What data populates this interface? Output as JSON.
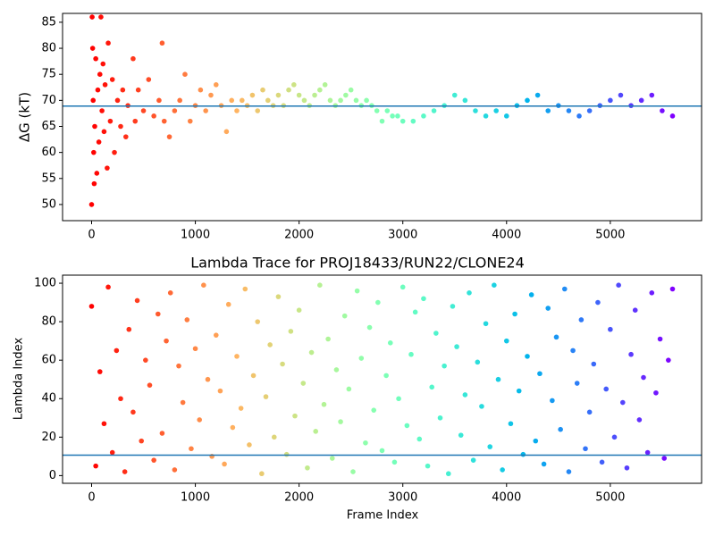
{
  "chart_data": [
    {
      "type": "scatter",
      "ylabel": "ΔG (kT)",
      "colormap": "rainbow_r",
      "xlim": [
        -280,
        5880
      ],
      "xticks": [
        0,
        1000,
        2000,
        3000,
        4000,
        5000
      ],
      "ylim": [
        46.9,
        86.7
      ],
      "yticks": [
        50,
        55,
        60,
        65,
        70,
        75,
        80,
        85
      ],
      "hline": 68.9,
      "hline_color": "#1f77b4",
      "x": [
        0,
        5,
        10,
        15,
        20,
        25,
        30,
        40,
        50,
        60,
        70,
        80,
        90,
        100,
        110,
        120,
        130,
        150,
        160,
        180,
        200,
        220,
        250,
        280,
        300,
        330,
        350,
        400,
        420,
        450,
        500,
        550,
        600,
        650,
        680,
        700,
        750,
        800,
        850,
        900,
        950,
        1000,
        1050,
        1100,
        1150,
        1200,
        1250,
        1300,
        1350,
        1400,
        1450,
        1500,
        1550,
        1600,
        1650,
        1700,
        1750,
        1800,
        1850,
        1900,
        1950,
        2000,
        2050,
        2100,
        2150,
        2200,
        2250,
        2300,
        2350,
        2400,
        2450,
        2500,
        2550,
        2600,
        2650,
        2700,
        2750,
        2800,
        2850,
        2900,
        2950,
        3000,
        3100,
        3200,
        3300,
        3400,
        3500,
        3600,
        3700,
        3800,
        3900,
        4000,
        4100,
        4200,
        4300,
        4400,
        4500,
        4600,
        4700,
        4800,
        4900,
        5000,
        5100,
        5200,
        5300,
        5400,
        5500,
        5600
      ],
      "y": [
        50,
        86,
        80,
        70,
        60,
        54,
        65,
        78,
        56,
        72,
        62,
        75,
        86,
        68,
        77,
        64,
        73,
        57,
        81,
        66,
        74,
        60,
        70,
        65,
        72,
        63,
        69,
        78,
        66,
        72,
        68,
        74,
        67,
        70,
        81,
        66,
        63,
        68,
        70,
        75,
        66,
        69,
        72,
        68,
        71,
        73,
        69,
        64,
        70,
        68,
        70,
        69,
        71,
        68,
        72,
        70,
        69,
        71,
        69,
        72,
        73,
        71,
        70,
        69,
        71,
        72,
        73,
        70,
        69,
        70,
        71,
        72,
        70,
        69,
        70,
        69,
        68,
        66,
        68,
        67,
        67,
        66,
        66,
        67,
        68,
        69,
        71,
        70,
        68,
        67,
        68,
        67,
        69,
        70,
        71,
        68,
        69,
        68,
        67,
        68,
        69,
        70,
        71,
        69,
        70,
        71,
        68,
        67
      ]
    },
    {
      "type": "scatter",
      "title": "Lambda Trace for PROJ18433/RUN22/CLONE24",
      "xlabel": "Frame Index",
      "ylabel": "Lambda Index",
      "colormap": "rainbow_r",
      "xlim": [
        -280,
        5880
      ],
      "xticks": [
        0,
        1000,
        2000,
        3000,
        4000,
        5000
      ],
      "ylim": [
        -4,
        104.2
      ],
      "yticks": [
        0,
        20,
        40,
        60,
        80,
        100
      ],
      "hline": 10.6,
      "hline_color": "#1f77b4",
      "x": [
        0,
        40,
        80,
        120,
        160,
        200,
        240,
        280,
        320,
        360,
        400,
        440,
        480,
        520,
        560,
        600,
        640,
        680,
        720,
        760,
        800,
        840,
        880,
        920,
        960,
        1000,
        1040,
        1080,
        1120,
        1160,
        1200,
        1240,
        1280,
        1320,
        1360,
        1400,
        1440,
        1480,
        1520,
        1560,
        1600,
        1640,
        1680,
        1720,
        1760,
        1800,
        1840,
        1880,
        1920,
        1960,
        2000,
        2040,
        2080,
        2120,
        2160,
        2200,
        2240,
        2280,
        2320,
        2360,
        2400,
        2440,
        2480,
        2520,
        2560,
        2600,
        2640,
        2680,
        2720,
        2760,
        2800,
        2840,
        2880,
        2920,
        2960,
        3000,
        3040,
        3080,
        3120,
        3160,
        3200,
        3240,
        3280,
        3320,
        3360,
        3400,
        3440,
        3480,
        3520,
        3560,
        3600,
        3640,
        3680,
        3720,
        3760,
        3800,
        3840,
        3880,
        3920,
        3960,
        4000,
        4040,
        4080,
        4120,
        4160,
        4200,
        4240,
        4280,
        4320,
        4360,
        4400,
        4440,
        4480,
        4520,
        4560,
        4600,
        4640,
        4680,
        4720,
        4760,
        4800,
        4840,
        4880,
        4920,
        4960,
        5000,
        5040,
        5080,
        5120,
        5160,
        5200,
        5240,
        5280,
        5320,
        5360,
        5400,
        5440,
        5480,
        5520,
        5560,
        5600
      ],
      "y": [
        88,
        5,
        54,
        27,
        98,
        12,
        65,
        40,
        2,
        76,
        33,
        91,
        18,
        60,
        47,
        8,
        84,
        22,
        70,
        95,
        3,
        57,
        38,
        81,
        14,
        66,
        29,
        99,
        50,
        10,
        73,
        44,
        6,
        89,
        25,
        62,
        35,
        97,
        16,
        52,
        80,
        1,
        41,
        68,
        20,
        93,
        58,
        11,
        75,
        31,
        86,
        48,
        4,
        64,
        23,
        99,
        37,
        71,
        9,
        55,
        28,
        83,
        45,
        2,
        96,
        61,
        17,
        77,
        34,
        90,
        13,
        52,
        69,
        7,
        40,
        98,
        26,
        63,
        85,
        19,
        92,
        5,
        46,
        74,
        30,
        57,
        1,
        88,
        67,
        21,
        42,
        95,
        8,
        59,
        36,
        79,
        15,
        99,
        50,
        3,
        70,
        27,
        84,
        44,
        11,
        62,
        94,
        18,
        53,
        6,
        87,
        39,
        72,
        24,
        97,
        2,
        65,
        48,
        81,
        14,
        33,
        58,
        90,
        7,
        45,
        76,
        20,
        99,
        38,
        4,
        63,
        86,
        29,
        51,
        12,
        95,
        43,
        71,
        9,
        60,
        97
      ]
    }
  ]
}
